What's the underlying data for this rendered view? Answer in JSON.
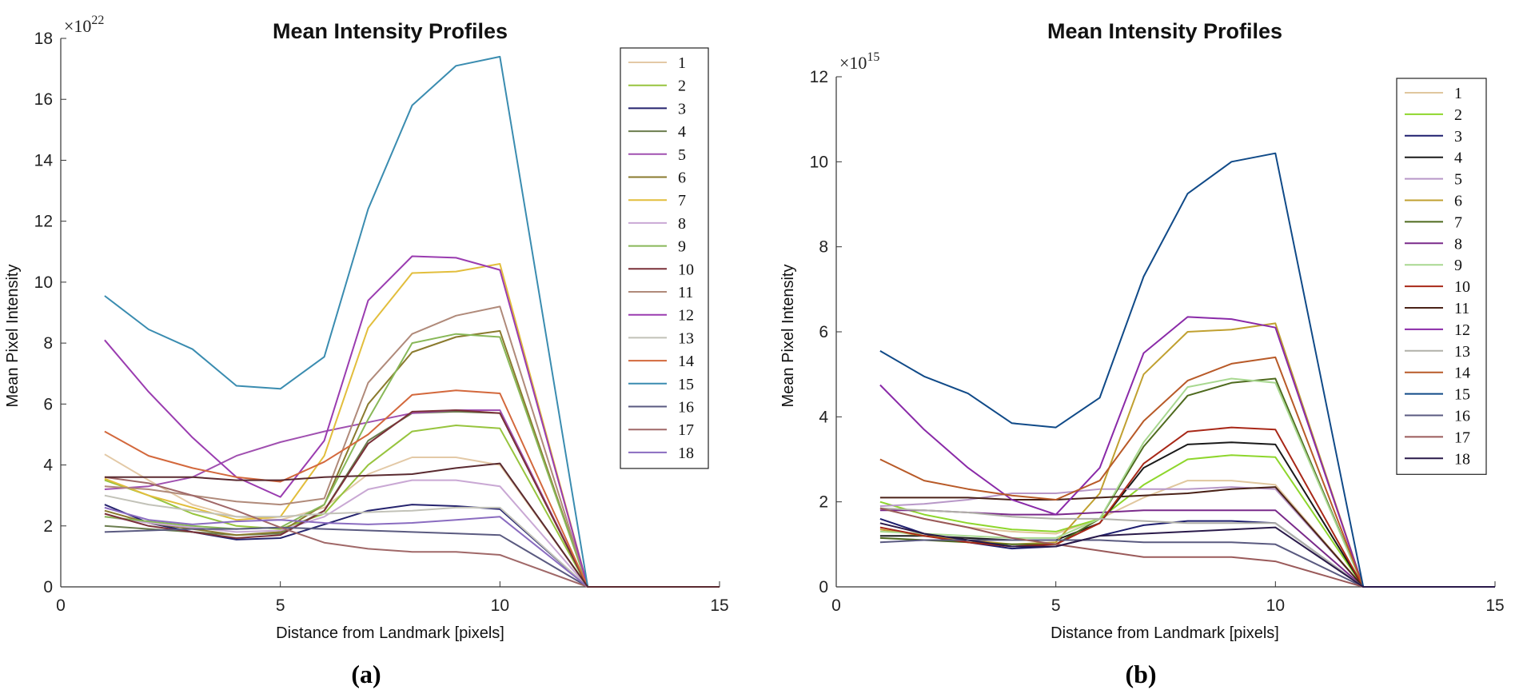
{
  "chart_data": [
    {
      "panel": "(a)",
      "type": "line",
      "title": "Mean Intensity Profiles",
      "xlabel": "Distance from Landmark [pixels]",
      "ylabel": "Mean Pixel Intensity",
      "multiplier_base": "×10",
      "multiplier_exp": "22",
      "xlim": [
        0,
        15
      ],
      "ylim": [
        0,
        18
      ],
      "xticks": [
        0,
        5,
        10,
        15
      ],
      "yticks": [
        0,
        2,
        4,
        6,
        8,
        10,
        12,
        14,
        16,
        18
      ],
      "x": [
        1,
        2,
        3,
        4,
        5,
        6,
        7,
        8,
        9,
        10,
        12,
        15
      ],
      "series": [
        {
          "name": "1",
          "color": "#e3c9a6",
          "values": [
            4.35,
            3.5,
            2.7,
            2.3,
            2.2,
            2.6,
            3.7,
            4.25,
            4.25,
            4.0,
            0,
            0
          ]
        },
        {
          "name": "2",
          "color": "#97c43e",
          "values": [
            3.5,
            3.0,
            2.4,
            2.0,
            1.9,
            2.4,
            4.0,
            5.1,
            5.3,
            5.2,
            0,
            0
          ]
        },
        {
          "name": "3",
          "color": "#25236e",
          "values": [
            2.7,
            2.1,
            1.8,
            1.55,
            1.6,
            2.05,
            2.5,
            2.7,
            2.65,
            2.55,
            0,
            0
          ]
        },
        {
          "name": "4",
          "color": "#6b7d4e",
          "values": [
            2.0,
            1.9,
            1.8,
            1.7,
            1.75,
            2.5,
            4.8,
            5.7,
            5.75,
            5.7,
            0,
            0
          ]
        },
        {
          "name": "5",
          "color": "#a050b0",
          "values": [
            3.2,
            3.3,
            3.6,
            4.3,
            4.75,
            5.1,
            5.4,
            5.7,
            5.8,
            5.8,
            0,
            0
          ]
        },
        {
          "name": "6",
          "color": "#8a7a2e",
          "values": [
            2.5,
            2.1,
            1.9,
            1.7,
            1.8,
            2.7,
            6.0,
            7.7,
            8.2,
            8.4,
            0,
            0
          ]
        },
        {
          "name": "7",
          "color": "#e2be3c",
          "values": [
            3.55,
            3.0,
            2.6,
            2.2,
            2.3,
            4.3,
            8.5,
            10.3,
            10.35,
            10.6,
            0,
            0
          ]
        },
        {
          "name": "8",
          "color": "#c9a8d4",
          "values": [
            2.3,
            2.1,
            1.95,
            1.8,
            1.85,
            2.3,
            3.2,
            3.5,
            3.5,
            3.3,
            0,
            0
          ]
        },
        {
          "name": "9",
          "color": "#88b858",
          "values": [
            2.3,
            2.15,
            2.0,
            1.9,
            1.95,
            2.7,
            5.5,
            8.0,
            8.3,
            8.2,
            0,
            0
          ]
        },
        {
          "name": "10",
          "color": "#7a3038",
          "values": [
            2.4,
            2.0,
            1.8,
            1.6,
            1.7,
            2.5,
            4.7,
            5.75,
            5.8,
            5.7,
            0,
            0
          ]
        },
        {
          "name": "11",
          "color": "#b08a7a",
          "values": [
            3.3,
            3.2,
            3.0,
            2.8,
            2.7,
            2.9,
            6.7,
            8.3,
            8.9,
            9.2,
            0,
            0
          ]
        },
        {
          "name": "12",
          "color": "#9a3cb0",
          "values": [
            8.1,
            6.4,
            4.9,
            3.6,
            2.95,
            4.8,
            9.4,
            10.85,
            10.8,
            10.4,
            0,
            0
          ]
        },
        {
          "name": "13",
          "color": "#c2c2b8",
          "values": [
            3.0,
            2.7,
            2.5,
            2.3,
            2.3,
            2.4,
            2.45,
            2.5,
            2.6,
            2.6,
            0,
            0
          ]
        },
        {
          "name": "14",
          "color": "#d3683c",
          "values": [
            5.1,
            4.3,
            3.9,
            3.6,
            3.45,
            4.1,
            5.0,
            6.3,
            6.45,
            6.35,
            0,
            0
          ]
        },
        {
          "name": "15",
          "color": "#3a8cb0",
          "values": [
            9.55,
            8.45,
            7.8,
            6.6,
            6.5,
            7.55,
            12.4,
            15.8,
            17.1,
            17.4,
            0,
            0
          ]
        },
        {
          "name": "16",
          "color": "#5a5a80",
          "values": [
            1.8,
            1.85,
            1.9,
            1.9,
            1.95,
            1.9,
            1.85,
            1.8,
            1.75,
            1.7,
            0,
            0
          ]
        },
        {
          "name": "17",
          "color": "#a06868",
          "values": [
            3.6,
            3.4,
            3.0,
            2.5,
            1.95,
            1.45,
            1.25,
            1.15,
            1.15,
            1.05,
            0,
            0
          ]
        },
        {
          "name": "18",
          "color": "#8a6cc0",
          "values": [
            2.6,
            2.2,
            2.05,
            2.15,
            2.2,
            2.1,
            2.05,
            2.1,
            2.2,
            2.3,
            0,
            0
          ]
        },
        {
          "name": "",
          "color": "#5a2a30",
          "values": [
            3.6,
            3.6,
            3.6,
            3.5,
            3.5,
            3.6,
            3.65,
            3.7,
            3.9,
            4.05,
            0,
            0
          ]
        }
      ]
    },
    {
      "panel": "(b)",
      "type": "line",
      "title": "Mean Intensity Profiles",
      "xlabel": "Distance from Landmark [pixels]",
      "ylabel": "Mean Pixel Intensity",
      "multiplier_base": "×10",
      "multiplier_exp": "15",
      "xlim": [
        0,
        15
      ],
      "ylim": [
        0,
        12
      ],
      "xticks": [
        0,
        5,
        10,
        15
      ],
      "yticks": [
        0,
        2,
        4,
        6,
        8,
        10,
        12
      ],
      "x": [
        1,
        2,
        3,
        4,
        5,
        6,
        7,
        8,
        9,
        10,
        12,
        15
      ],
      "series": [
        {
          "name": "1",
          "color": "#e0c79e",
          "values": [
            1.85,
            1.6,
            1.4,
            1.3,
            1.25,
            1.6,
            2.1,
            2.5,
            2.5,
            2.4,
            0,
            0
          ]
        },
        {
          "name": "2",
          "color": "#8ed62c",
          "values": [
            2.0,
            1.7,
            1.5,
            1.35,
            1.3,
            1.6,
            2.4,
            3.0,
            3.1,
            3.05,
            0,
            0
          ]
        },
        {
          "name": "3",
          "color": "#1e1e6e",
          "values": [
            1.6,
            1.25,
            1.05,
            0.9,
            0.95,
            1.2,
            1.45,
            1.55,
            1.55,
            1.5,
            0,
            0
          ]
        },
        {
          "name": "4",
          "color": "#1a1a1a",
          "values": [
            1.2,
            1.2,
            1.15,
            1.1,
            1.1,
            1.5,
            2.8,
            3.35,
            3.4,
            3.35,
            0,
            0
          ]
        },
        {
          "name": "5",
          "color": "#b898c8",
          "values": [
            1.9,
            1.95,
            2.05,
            2.2,
            2.2,
            2.3,
            2.3,
            2.3,
            2.35,
            2.3,
            0,
            0
          ]
        },
        {
          "name": "6",
          "color": "#c0a030",
          "values": [
            1.35,
            1.2,
            1.1,
            1.0,
            1.05,
            2.2,
            5.0,
            6.0,
            6.05,
            6.2,
            0,
            0
          ]
        },
        {
          "name": "7",
          "color": "#4e6a1e",
          "values": [
            1.15,
            1.1,
            1.05,
            1.0,
            1.0,
            1.6,
            3.3,
            4.5,
            4.8,
            4.9,
            0,
            0
          ]
        },
        {
          "name": "8",
          "color": "#7a2a8a",
          "values": [
            1.8,
            1.8,
            1.75,
            1.7,
            1.7,
            1.75,
            1.8,
            1.8,
            1.8,
            1.8,
            0,
            0
          ]
        },
        {
          "name": "9",
          "color": "#a8d890",
          "values": [
            1.3,
            1.25,
            1.2,
            1.15,
            1.15,
            1.6,
            3.4,
            4.7,
            4.9,
            4.8,
            0,
            0
          ]
        },
        {
          "name": "10",
          "color": "#a82818",
          "values": [
            1.4,
            1.2,
            1.05,
            0.95,
            1.0,
            1.5,
            2.9,
            3.65,
            3.75,
            3.7,
            0,
            0
          ]
        },
        {
          "name": "11",
          "color": "#4a2218",
          "values": [
            2.1,
            2.1,
            2.1,
            2.05,
            2.05,
            2.1,
            2.15,
            2.2,
            2.3,
            2.35,
            0,
            0
          ]
        },
        {
          "name": "12",
          "color": "#8a2aa8",
          "values": [
            4.75,
            3.7,
            2.8,
            2.05,
            1.7,
            2.8,
            5.5,
            6.35,
            6.3,
            6.1,
            0,
            0
          ]
        },
        {
          "name": "13",
          "color": "#b0b0a8",
          "values": [
            1.85,
            1.8,
            1.75,
            1.65,
            1.6,
            1.6,
            1.55,
            1.5,
            1.5,
            1.5,
            0,
            0
          ]
        },
        {
          "name": "14",
          "color": "#b85a28",
          "values": [
            3.0,
            2.5,
            2.3,
            2.15,
            2.05,
            2.5,
            3.9,
            4.85,
            5.25,
            5.4,
            0,
            0
          ]
        },
        {
          "name": "15",
          "color": "#104a88",
          "values": [
            5.55,
            4.95,
            4.55,
            3.85,
            3.75,
            4.45,
            7.3,
            9.25,
            10.0,
            10.2,
            0,
            0
          ]
        },
        {
          "name": "16",
          "color": "#5a5a80",
          "values": [
            1.05,
            1.1,
            1.1,
            1.1,
            1.1,
            1.1,
            1.05,
            1.05,
            1.05,
            1.0,
            0,
            0
          ]
        },
        {
          "name": "17",
          "color": "#9a5a5a",
          "values": [
            1.85,
            1.6,
            1.4,
            1.15,
            1.0,
            0.85,
            0.7,
            0.7,
            0.7,
            0.6,
            0,
            0
          ]
        },
        {
          "name": "18",
          "color": "#2a1a4a",
          "values": [
            1.5,
            1.25,
            1.1,
            0.95,
            0.95,
            1.2,
            1.25,
            1.3,
            1.35,
            1.4,
            0,
            0
          ]
        }
      ]
    }
  ],
  "captions": [
    "(a)",
    "(b)"
  ]
}
